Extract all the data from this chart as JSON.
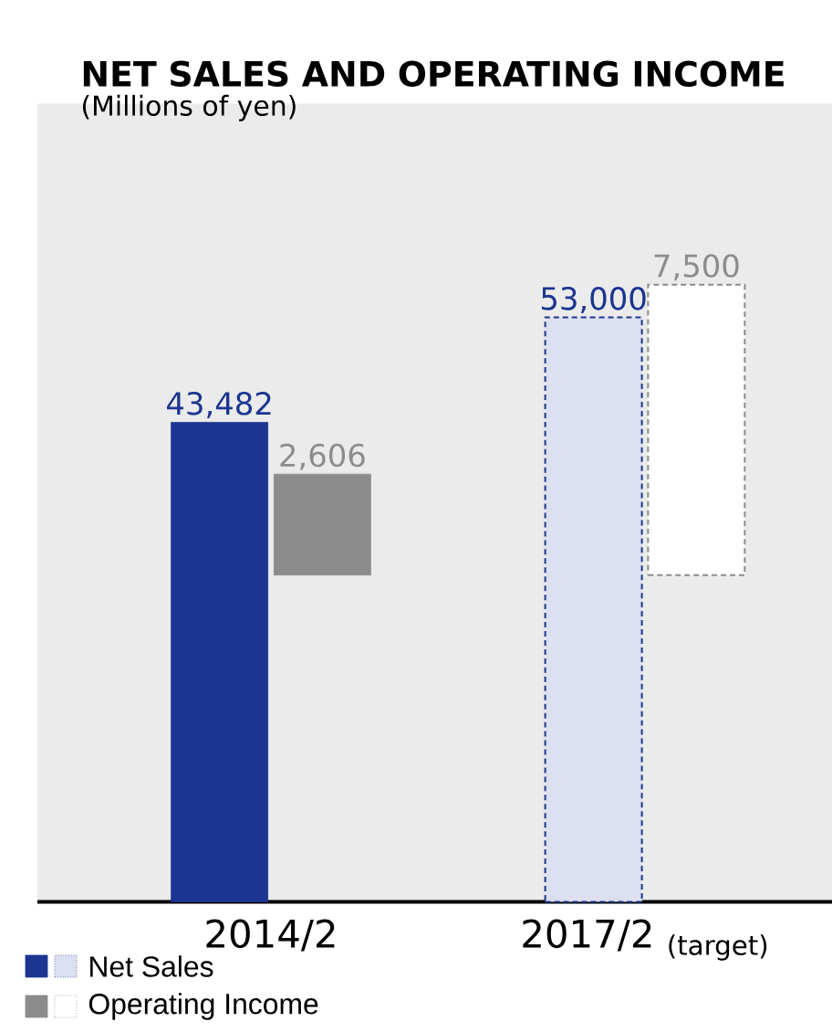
{
  "chart_data": {
    "type": "bar",
    "title": "NET SALES AND OPERATING INCOME",
    "subtitle": "(Millions of yen)",
    "categories": [
      "2014/2",
      "2017/2 $_{(target)}$"
    ],
    "series": [
      {
        "name": "Net Sales",
        "color": "#1b3591",
        "colors": [
          "#1b3591",
          "#dde0f0"
        ],
        "values": [
          43482,
          53000
        ],
        "value_labels": [
          "43,482",
          "53,000"
        ]
      },
      {
        "name": "Operating Income",
        "color": "#8c8c8c",
        "colors": [
          "#8c8c8c",
          "#ffffff"
        ],
        "values": [
          2606,
          7500
        ],
        "value_labels": [
          "2,606",
          "7,500"
        ],
        "axis": "y2"
      }
    ],
    "legend": "bottom left",
    "tick_labels": "x"
  }
}
